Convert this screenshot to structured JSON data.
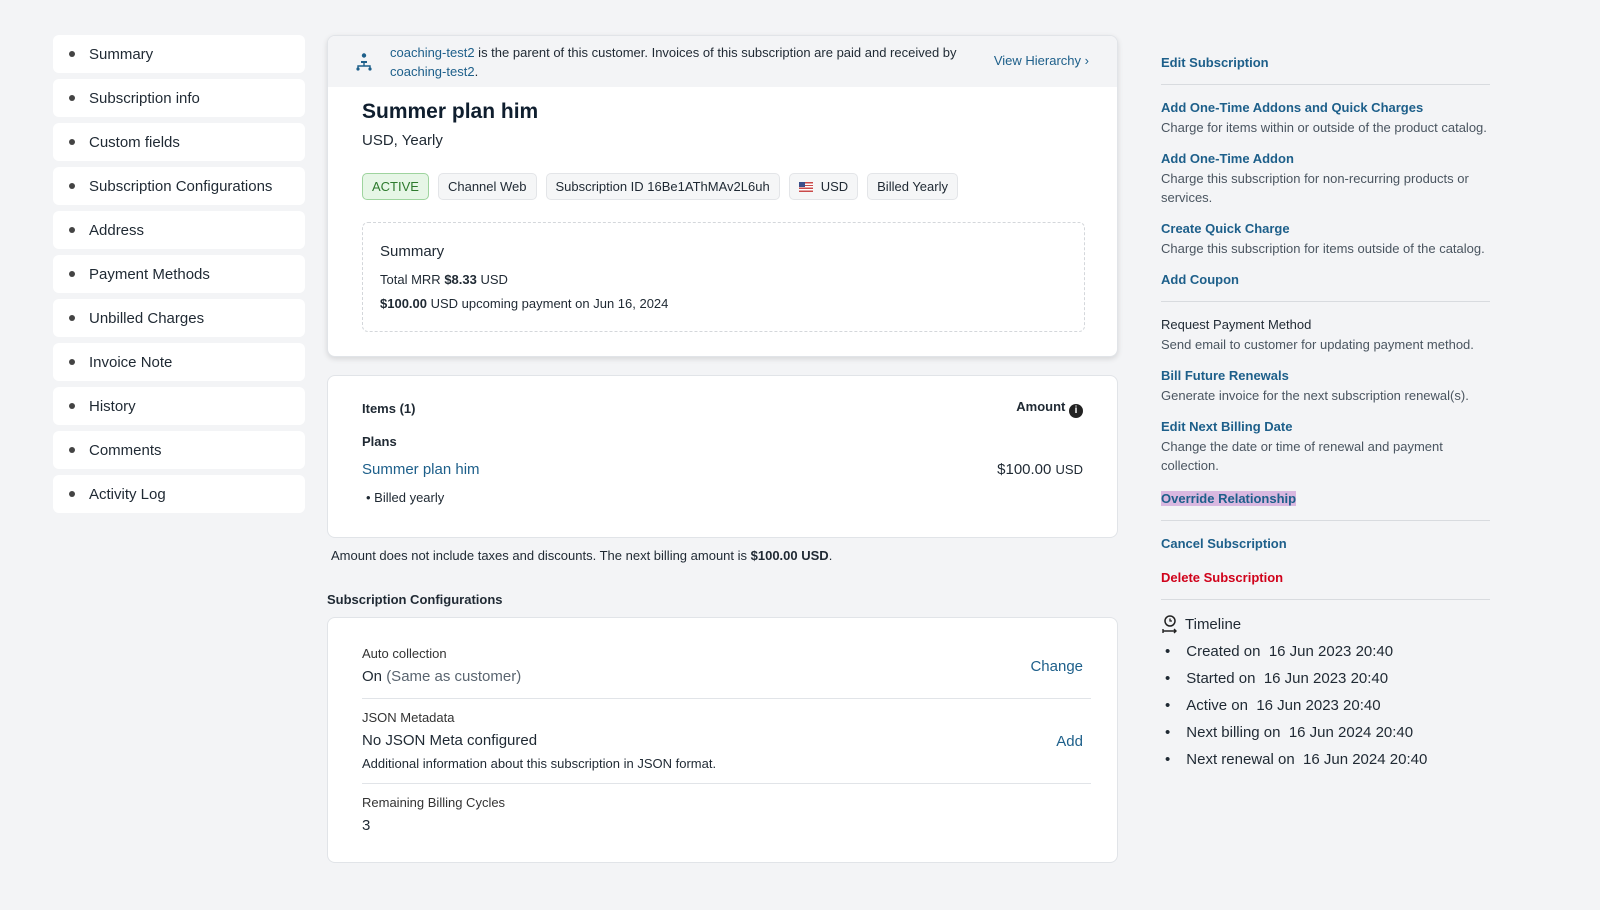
{
  "sidebar": {
    "items": [
      "Summary",
      "Subscription info",
      "Custom fields",
      "Subscription Configurations",
      "Address",
      "Payment Methods",
      "Unbilled Charges",
      "Invoice Note",
      "History",
      "Comments",
      "Activity Log"
    ]
  },
  "banner": {
    "parent": "coaching-test2",
    "text1": " is the parent of this customer. Invoices of this subscription are paid and received by ",
    "parent2": "coaching-test2",
    "text2": ".",
    "view": "View Hierarchy"
  },
  "plan": {
    "title": "Summer plan him",
    "subtitle": "USD, Yearly"
  },
  "badges": {
    "status": "ACTIVE",
    "channel": "Channel Web",
    "sub_id_label": "Subscription ID",
    "sub_id": "16Be1AThMAv2L6uh",
    "currency": "USD",
    "billing": "Billed Yearly"
  },
  "summary": {
    "title": "Summary",
    "mrr_label": "Total MRR",
    "mrr": "$8.33",
    "mrr_cur": "USD",
    "upcoming_amt": "$100.00",
    "upcoming_text": "USD upcoming payment on Jun 16, 2024"
  },
  "items": {
    "header": "Items (1)",
    "amount": "Amount",
    "plans": "Plans",
    "plan_name": "Summer plan him",
    "plan_price": "$100.00",
    "plan_cur": "USD",
    "billed": "Billed yearly"
  },
  "note": {
    "text": "Amount does not include taxes and discounts. The next billing amount is ",
    "amount": "$100.00 USD",
    "end": "."
  },
  "config": {
    "title": "Subscription Configurations",
    "auto_label": "Auto collection",
    "auto_val": "On",
    "auto_sub": "(Same as customer)",
    "change": "Change",
    "json_label": "JSON Metadata",
    "json_val": "No JSON Meta configured",
    "json_desc": "Additional information about this subscription in JSON format.",
    "add": "Add",
    "cycles_label": "Remaining Billing Cycles",
    "cycles_val": "3"
  },
  "actions": {
    "edit": "Edit Subscription",
    "addons": "Add One-Time Addons and Quick Charges",
    "addons_d": "Charge for items within or outside of the product catalog.",
    "addon": "Add One-Time Addon",
    "addon_d": "Charge this subscription for non-recurring products or services.",
    "quick": "Create Quick Charge",
    "quick_d": "Charge this subscription for items outside of the catalog.",
    "coupon": "Add Coupon",
    "request": "Request Payment Method",
    "request_d": "Send email to customer for updating payment method.",
    "future": "Bill Future Renewals",
    "future_d": "Generate invoice for the next subscription renewal(s).",
    "nextdate": "Edit Next Billing Date",
    "nextdate_d": "Change the date or time of renewal and payment collection.",
    "override": "Override Relationship",
    "cancel": "Cancel Subscription",
    "delete": "Delete Subscription"
  },
  "timeline": {
    "title": "Timeline",
    "entries": [
      {
        "label": "Created on",
        "value": "16 Jun 2023 20:40"
      },
      {
        "label": "Started on",
        "value": "16 Jun 2023 20:40"
      },
      {
        "label": "Active on",
        "value": "16 Jun 2023 20:40"
      },
      {
        "label": "Next billing on",
        "value": "16 Jun 2024 20:40"
      },
      {
        "label": "Next renewal on",
        "value": "16 Jun 2024 20:40"
      }
    ]
  },
  "colors": {
    "link": "#1d5f8a",
    "danger": "#d0021b",
    "active_bg": "#e6f6e6",
    "highlight": "#d9b8e0"
  }
}
